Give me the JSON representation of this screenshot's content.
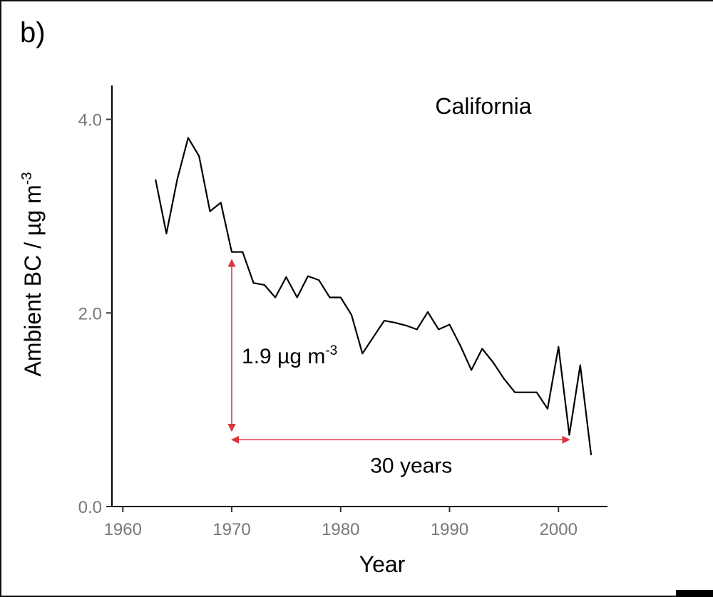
{
  "panel_label": "b)",
  "chart_data": {
    "type": "line",
    "title": "California",
    "xlabel": "Year",
    "ylabel_main": "Ambient BC / µg m",
    "ylabel_sup": "-3",
    "xlim": [
      1959,
      2004.5
    ],
    "ylim": [
      0,
      4.35
    ],
    "x_ticks": [
      1960,
      1970,
      1980,
      1990,
      2000
    ],
    "x_tick_labels": [
      "1960",
      "1970",
      "1980",
      "1990",
      "2000"
    ],
    "y_ticks": [
      0,
      2,
      4
    ],
    "y_tick_labels": [
      "0.0",
      "2.0",
      "4.0"
    ],
    "grid": false,
    "line_color": "#000000",
    "annotation_color": "#d9363e",
    "series": [
      {
        "x": [
          1963,
          1964,
          1965,
          1966,
          1967,
          1968,
          1969,
          1970,
          1971,
          1972,
          1973,
          1974,
          1975,
          1976,
          1977,
          1978,
          1979,
          1980,
          1981,
          1982,
          1983,
          1984,
          1985,
          1986,
          1987,
          1988,
          1989,
          1990,
          1991,
          1992,
          1993,
          1994,
          1995,
          1996,
          1997,
          1998,
          1999,
          2000,
          2001,
          2002,
          2003
        ],
        "y": [
          3.38,
          2.82,
          3.38,
          3.81,
          3.62,
          3.05,
          3.14,
          2.63,
          2.63,
          2.31,
          2.29,
          2.16,
          2.37,
          2.16,
          2.38,
          2.34,
          2.16,
          2.16,
          1.98,
          1.58,
          1.75,
          1.92,
          1.9,
          1.87,
          1.83,
          2.01,
          1.83,
          1.88,
          1.66,
          1.41,
          1.63,
          1.49,
          1.32,
          1.18,
          1.18,
          1.18,
          1.01,
          1.65,
          0.74,
          1.46,
          0.53
        ]
      }
    ],
    "annotations": [
      {
        "type": "vertical-arrow",
        "x": 1970,
        "y_from": 2.55,
        "y_to": 0.78,
        "label": "1.9 µg m",
        "label_sup": "-3"
      },
      {
        "type": "horizontal-arrow",
        "y": 0.69,
        "x_from": 1970,
        "x_to": 2001,
        "label": "30 years"
      }
    ]
  }
}
